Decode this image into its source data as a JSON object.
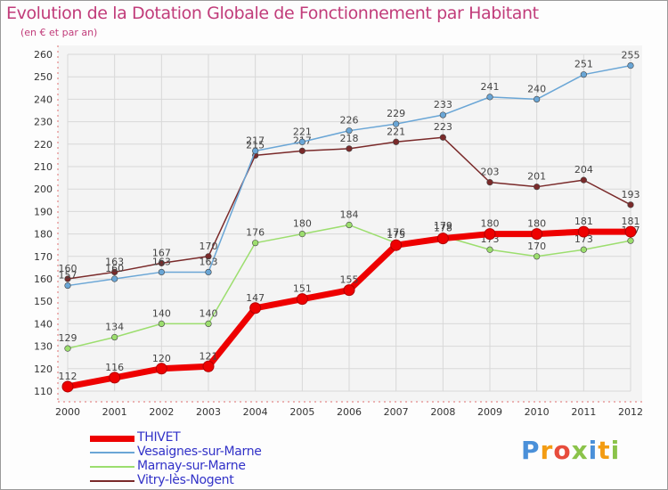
{
  "header": {
    "title": "Evolution de la Dotation Globale de Fonctionnement par Habitant",
    "subtitle": "(en € et par an)"
  },
  "chart_data": {
    "type": "line",
    "title": "Evolution de la Dotation Globale de Fonctionnement par Habitant",
    "subtitle": "(en € et par an)",
    "xlabel": "",
    "ylabel": "",
    "categories": [
      "2000",
      "2001",
      "2002",
      "2003",
      "2004",
      "2005",
      "2006",
      "2007",
      "2008",
      "2009",
      "2010",
      "2011",
      "2012"
    ],
    "ylim": [
      110,
      260
    ],
    "yticks": [
      110,
      120,
      130,
      140,
      150,
      160,
      170,
      180,
      190,
      200,
      210,
      220,
      230,
      240,
      250,
      260
    ],
    "grid": true,
    "legend_position": "bottom-left",
    "series": [
      {
        "name": "THIVET",
        "color": "#ee0000",
        "values": [
          112,
          116,
          120,
          121,
          147,
          151,
          155,
          175,
          178,
          180,
          180,
          181,
          181
        ]
      },
      {
        "name": "Vesaignes-sur-Marne",
        "color": "#6aa6d6",
        "values": [
          157,
          160,
          163,
          163,
          217,
          221,
          226,
          229,
          233,
          241,
          240,
          251,
          255
        ]
      },
      {
        "name": "Marnay-sur-Marne",
        "color": "#9cde6e",
        "values": [
          129,
          134,
          140,
          140,
          176,
          180,
          184,
          176,
          179,
          173,
          170,
          173,
          177
        ]
      },
      {
        "name": "Vitry-lès-Nogent",
        "color": "#7a2a2a",
        "values": [
          160,
          163,
          167,
          170,
          215,
          217,
          218,
          221,
          223,
          203,
          201,
          204,
          193
        ]
      }
    ]
  },
  "legend": {
    "items": [
      {
        "label": "THIVET"
      },
      {
        "label": "Vesaignes-sur-Marne"
      },
      {
        "label": "Marnay-sur-Marne"
      },
      {
        "label": "Vitry-lès-Nogent"
      }
    ]
  },
  "logo": {
    "letters": [
      "P",
      "r",
      "o",
      "x",
      "i",
      "t",
      "i"
    ],
    "colors": [
      "#4a90d9",
      "#f39c12",
      "#e74c3c",
      "#8bc34a",
      "#4a90d9",
      "#f39c12",
      "#8bc34a"
    ]
  }
}
